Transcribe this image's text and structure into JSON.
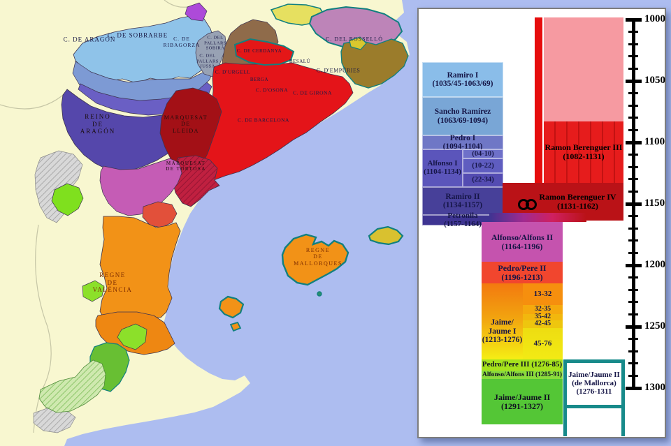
{
  "palette": {
    "sea": "#adbdf0",
    "land": "#f8f7d0",
    "teal_outline": "#12807f",
    "aragon_blue": "#8fc3e9",
    "reino_purple": "#5547ab",
    "barcelona_red": "#e41419",
    "pink_early": "#f69aa1",
    "rb3_red": "#e61c1c",
    "rb4_red": "#ba1217",
    "crown_magenta": "#c553ae",
    "valencia_orange": "#f29217",
    "green_late": "#54c636"
  },
  "map": {
    "labels": [
      {
        "text": "C. DE ARAGÓN"
      },
      {
        "text": "C. DE SOBRARBE"
      },
      {
        "text": "C. DE\nRIBAGORZA"
      },
      {
        "text": "C. DEL\nPALLARS\nSOBIRÀ"
      },
      {
        "text": "C. DEL\nPALLARS\nJUSSÀ"
      },
      {
        "text": "C. D'URGELL"
      },
      {
        "text": "C. DE CERDANYA"
      },
      {
        "text": "C. DEL ROSSELLÓ"
      },
      {
        "text": "BESALÚ"
      },
      {
        "text": "C. D'EMPÚRIES"
      },
      {
        "text": "BERGA"
      },
      {
        "text": "C. D'OSONA"
      },
      {
        "text": "C. DE GIRONA"
      },
      {
        "text": "C. DE BARCELONA"
      },
      {
        "text": "MARQUESAT\nDE\nLLEIDA"
      },
      {
        "text": "MARQUESAT\nDE TORTOSA"
      },
      {
        "text": "REINO\nDE\nARAGÓN"
      },
      {
        "text": "REGNE\nDE\nVALÈNCIA"
      },
      {
        "text": "REGNE\nDE\nMALLORQUES"
      }
    ]
  },
  "timeline": {
    "axis_labels": [
      "1000",
      "1050",
      "1100",
      "1150",
      "1200",
      "1250",
      "1300"
    ],
    "axis": {
      "start": 1000,
      "end": 1300,
      "major_step": 50,
      "minor_step": 10
    },
    "boxes": {
      "ramiro1": "Ramiro I\n(1035/45-1063/69)",
      "sancho": "Sancho Ramírez\n(1063/69-1094)",
      "pedro1": "Pedro I\n(1094-1104)",
      "alfonso1": "Alfonso I\n(1104-1134)",
      "alfonso1_a": "(04-10)",
      "alfonso1_b": "(10-22)",
      "alfonso1_c": "(22-34)",
      "ramiro2": "Ramiro II\n(1134-1157)",
      "petronila": "Petronila\n(1157-1164)",
      "rb3": "Ramon Berenguer III\n(1082-1131)",
      "rb4": "Ramon Berenguer IV\n(1131-1162)",
      "alfons2": "Alfonso/Alfons II\n(1164-1196)",
      "pere2": "Pedro/Pere II\n(1196-1213)",
      "jaume1": "Jaime/\nJaume I\n(1213-1276)",
      "jaume1_a": "13-32",
      "jaume1_b": "32-35",
      "jaume1_c": "35-42",
      "jaume1_d": "42-45",
      "jaume1_e": "45-76",
      "pere3": "Pedro/Pere III (1276-85)",
      "alfons3": "Alfonso/Alfons III (1285-91)",
      "jaume2": "Jaime/Jaume II\n(1291-1327)",
      "jaume2_mallorca": "Jaime/Jaume II\n(de Mallorca)\n(1276-1311"
    },
    "marriage_year": "1150"
  }
}
